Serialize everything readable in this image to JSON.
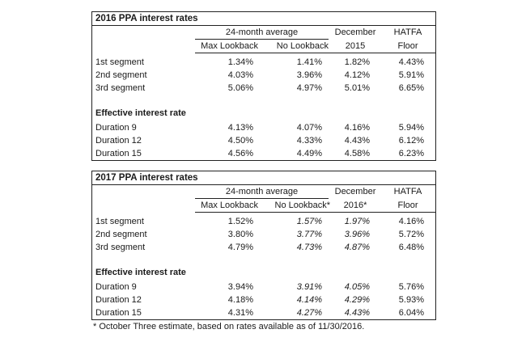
{
  "tables": [
    {
      "title": "2016 PPA interest rates",
      "avg_header": "24-month average",
      "col_headers": {
        "max": "Max Lookback",
        "no": "No Lookback",
        "dec_line1": "December",
        "dec_line2": "2015",
        "hatfa_line1": "HATFA",
        "hatfa_line2": "Floor"
      },
      "segments": [
        {
          "label": "1st segment",
          "max": "1.34%",
          "no": "1.41%",
          "dec": "1.82%",
          "hatfa": "4.43%"
        },
        {
          "label": "2nd segment",
          "max": "4.03%",
          "no": "3.96%",
          "dec": "4.12%",
          "hatfa": "5.91%"
        },
        {
          "label": "3rd segment",
          "max": "5.06%",
          "no": "4.97%",
          "dec": "5.01%",
          "hatfa": "6.65%"
        }
      ],
      "effective_header": "Effective interest rate",
      "durations": [
        {
          "label": "Duration 9",
          "max": "4.13%",
          "no": "4.07%",
          "dec": "4.16%",
          "hatfa": "5.94%"
        },
        {
          "label": "Duration 12",
          "max": "4.50%",
          "no": "4.33%",
          "dec": "4.43%",
          "hatfa": "6.12%"
        },
        {
          "label": "Duration 15",
          "max": "4.56%",
          "no": "4.49%",
          "dec": "4.58%",
          "hatfa": "6.23%"
        }
      ]
    },
    {
      "title": "2017 PPA interest rates",
      "avg_header": "24-month average",
      "col_headers": {
        "max": "Max Lookback",
        "no": "No Lookback*",
        "dec_line1": "December",
        "dec_line2": "2016*",
        "hatfa_line1": "HATFA",
        "hatfa_line2": "Floor"
      },
      "segments": [
        {
          "label": "1st segment",
          "max": "1.52%",
          "no": "1.57%",
          "dec": "1.97%",
          "hatfa": "4.16%"
        },
        {
          "label": "2nd segment",
          "max": "3.80%",
          "no": "3.77%",
          "dec": "3.96%",
          "hatfa": "5.72%"
        },
        {
          "label": "3rd segment",
          "max": "4.79%",
          "no": "4.73%",
          "dec": "4.87%",
          "hatfa": "6.48%"
        }
      ],
      "effective_header": "Effective interest rate",
      "durations": [
        {
          "label": "Duration 9",
          "max": "3.94%",
          "no": "3.91%",
          "dec": "4.05%",
          "hatfa": "5.76%"
        },
        {
          "label": "Duration 12",
          "max": "4.18%",
          "no": "4.14%",
          "dec": "4.29%",
          "hatfa": "5.93%"
        },
        {
          "label": "Duration 15",
          "max": "4.31%",
          "no": "4.27%",
          "dec": "4.43%",
          "hatfa": "6.04%"
        }
      ]
    }
  ],
  "footnote": "* October Three estimate, based on rates available as of 11/30/2016."
}
